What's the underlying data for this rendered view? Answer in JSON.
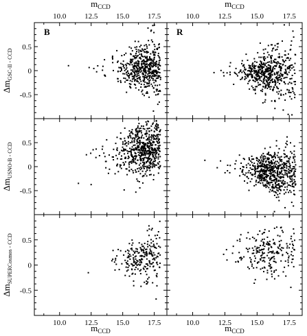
{
  "chart_data": {
    "type": "scatter",
    "grid": false,
    "x_axis": {
      "label_main": "m",
      "label_sub": "CCD",
      "range": [
        8,
        18.5
      ],
      "ticks": [
        10,
        12.5,
        15,
        17.5
      ],
      "tick_labels": [
        "10.0",
        "12.5",
        "15.0",
        "17.5"
      ]
    },
    "y_axis": {
      "range": [
        -1,
        1
      ],
      "ticks": [
        -0.5,
        0,
        0.5
      ],
      "tick_labels": [
        "-0.5",
        "0",
        "0.5"
      ]
    },
    "row_labels": [
      {
        "main": "Δm",
        "sub": "GSC-II - CCD"
      },
      {
        "main": "Δm",
        "sub": "USNO-B - CCD"
      },
      {
        "main": "Δm",
        "sub": "SUPERCosmos - CCD"
      }
    ],
    "column_labels": [
      "B",
      "R"
    ],
    "panels": [
      {
        "row": 0,
        "col": 0,
        "seed": 11,
        "n": 520,
        "mag_range": [
          9.5,
          18.0
        ],
        "mag_peak": 16.8,
        "center_bright": 0.05,
        "center_faint": 0.07,
        "spread_bright": 0.07,
        "spread_faint": 0.32
      },
      {
        "row": 0,
        "col": 1,
        "seed": 23,
        "n": 560,
        "mag_range": [
          9.8,
          18.0
        ],
        "mag_peak": 15.6,
        "center_bright": 0.0,
        "center_faint": -0.05,
        "spread_bright": 0.07,
        "spread_faint": 0.35
      },
      {
        "row": 1,
        "col": 0,
        "seed": 37,
        "n": 600,
        "mag_range": [
          9.5,
          18.0
        ],
        "mag_peak": 16.8,
        "center_bright": -0.15,
        "center_faint": 0.45,
        "spread_bright": 0.2,
        "spread_faint": 0.3
      },
      {
        "row": 1,
        "col": 1,
        "seed": 41,
        "n": 620,
        "mag_range": [
          9.5,
          18.0
        ],
        "mag_peak": 16.0,
        "center_bright": 0.05,
        "center_faint": -0.15,
        "spread_bright": 0.08,
        "spread_faint": 0.3
      },
      {
        "row": 2,
        "col": 0,
        "seed": 53,
        "n": 230,
        "mag_range": [
          10.5,
          18.0
        ],
        "mag_peak": 16.5,
        "center_bright": 0.0,
        "center_faint": 0.18,
        "spread_bright": 0.1,
        "spread_faint": 0.3
      },
      {
        "row": 2,
        "col": 1,
        "seed": 67,
        "n": 230,
        "mag_range": [
          9.5,
          18.0
        ],
        "mag_peak": 15.5,
        "center_bright": 0.2,
        "center_faint": 0.25,
        "spread_bright": 0.12,
        "spread_faint": 0.3
      }
    ]
  }
}
